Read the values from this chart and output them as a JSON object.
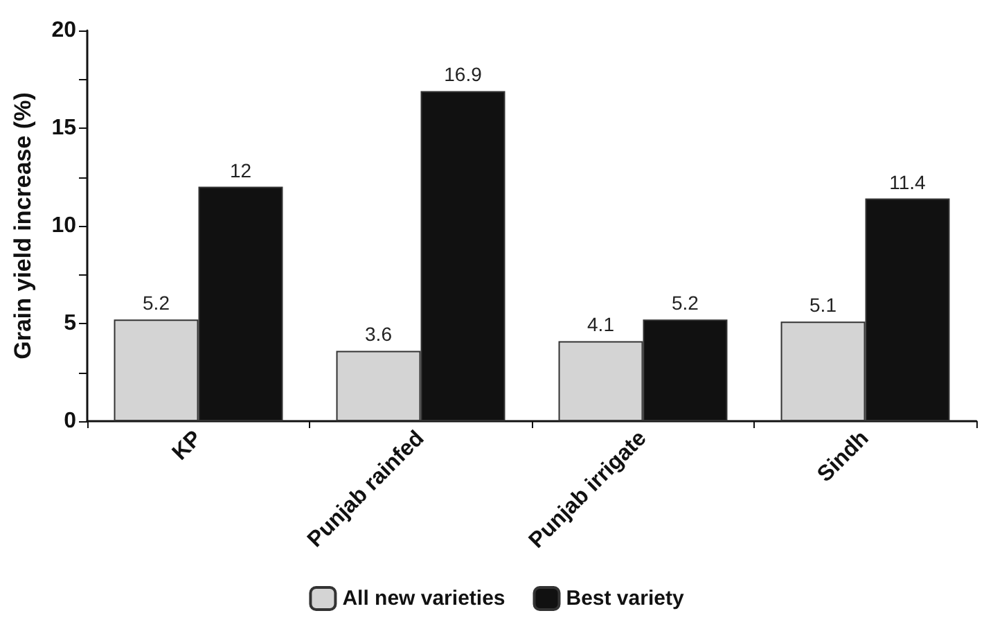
{
  "chart_data": {
    "type": "bar",
    "ylabel": "Grain yield increase (%)",
    "categories": [
      "KP",
      "Punjab rainfed",
      "Punjab irrigate",
      "Sindh"
    ],
    "series": [
      {
        "name": "All new varieties",
        "color": "#d4d4d4",
        "values": [
          5.2,
          3.6,
          4.1,
          5.1
        ]
      },
      {
        "name": "Best variety",
        "color": "#111111",
        "values": [
          12,
          16.9,
          5.2,
          11.4
        ]
      }
    ],
    "ylim": [
      0,
      20
    ],
    "yticks": [
      0,
      {
        "value": 2.5,
        "label": null
      },
      5,
      {
        "value": 7.5,
        "label": null
      },
      10,
      {
        "value": 12.5,
        "label": null
      },
      15,
      {
        "value": 17.5,
        "label": null
      },
      20
    ],
    "data_labels": true,
    "grid": false,
    "legend": "bottom"
  }
}
